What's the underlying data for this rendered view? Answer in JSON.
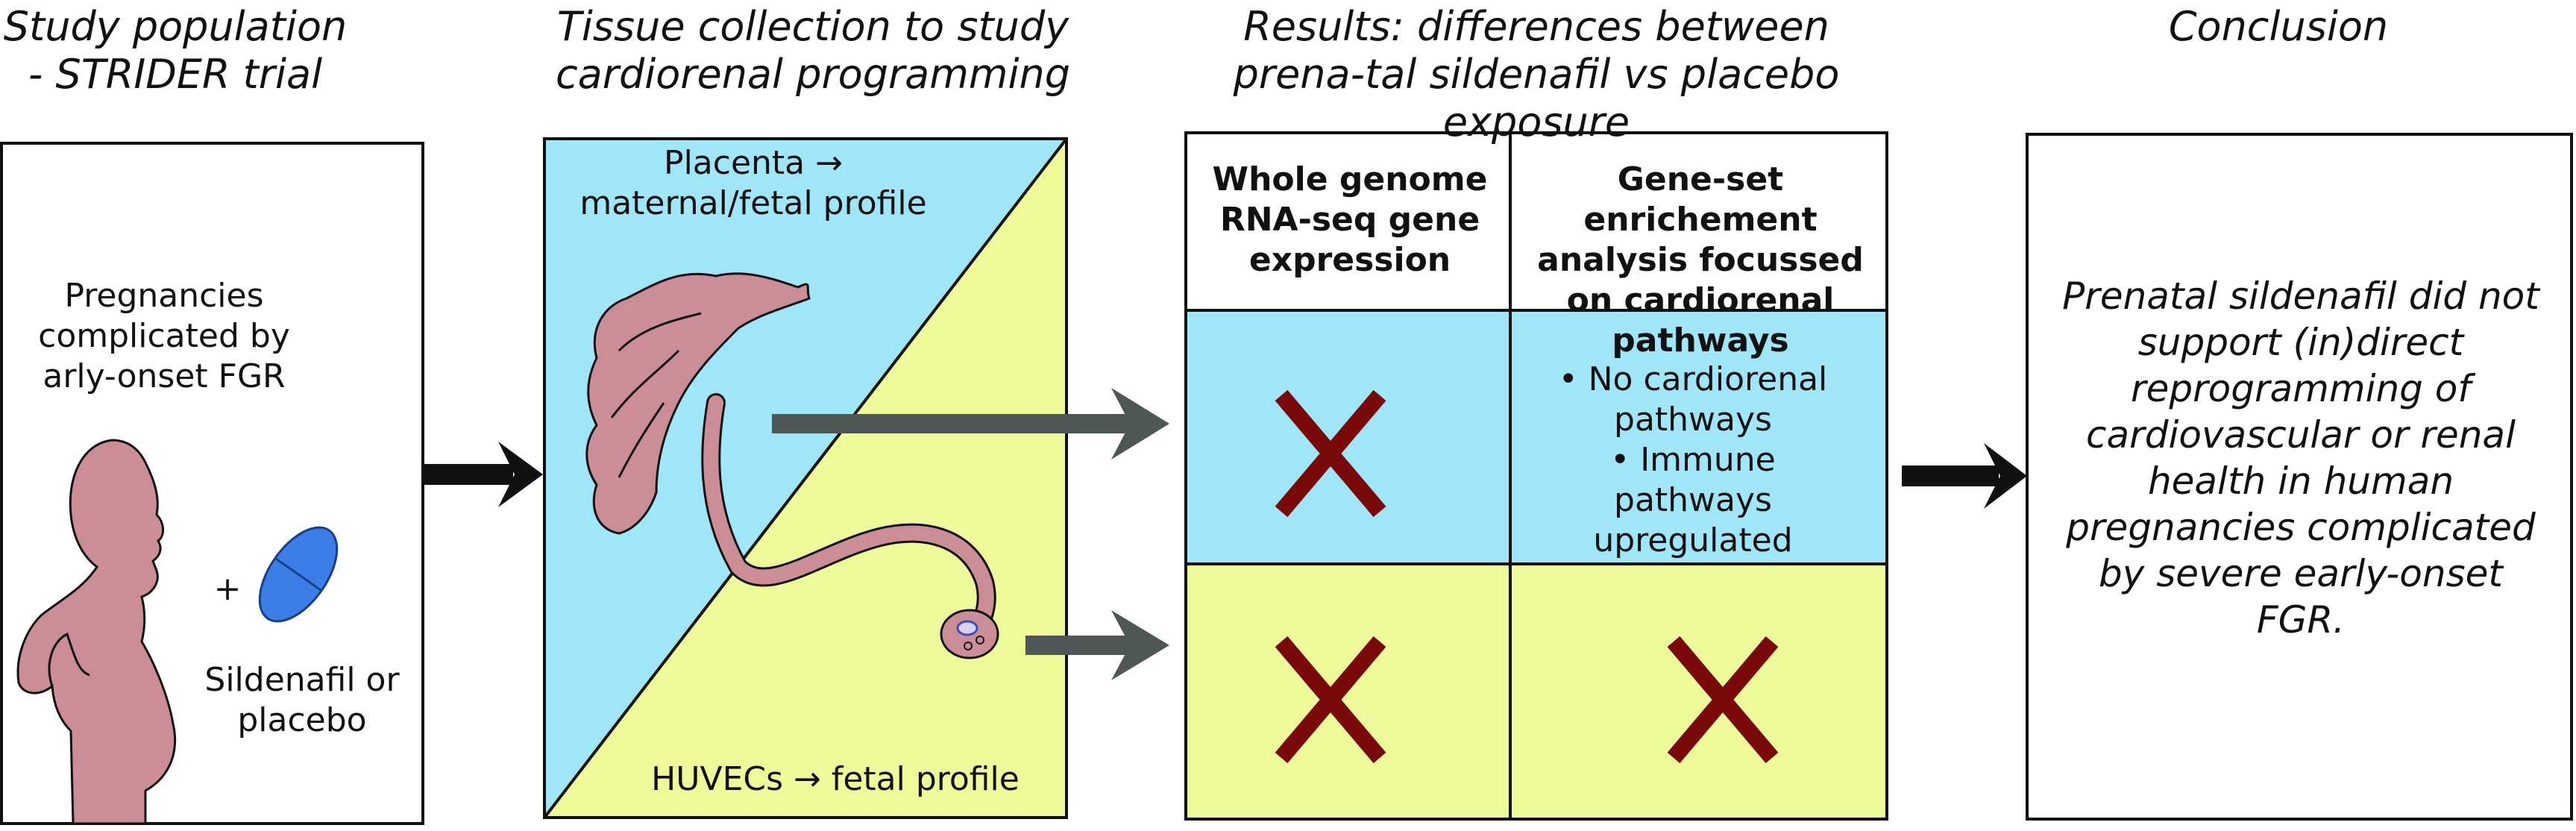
{
  "headings": {
    "study_population": "Study population - STRIDER trial",
    "tissue_collection": "Tissue collection to study cardiorenal programming",
    "results": "Results: differences between prena-tal sildenafil vs placebo exposure",
    "conclusion": "Conclusion"
  },
  "study_panel": {
    "pregnancies": "Pregnancies complicated by arly-onset FGR",
    "plus": "+",
    "treatment": "Sildenafil or placebo"
  },
  "tissue_panel": {
    "placenta": "Placenta → maternal/fetal profile",
    "huvecs": "HUVECs → fetal profile"
  },
  "results_table": {
    "col1_header": "Whole genome RNA-seq gene expression",
    "col2_header": "Gene-set enrichement analysis focussed on cardiorenal pathways",
    "placenta_row_col2_item1": "• No cardiorenal pathways",
    "placenta_row_col2_item2": "• Immune pathways upregulated"
  },
  "conclusion_text": "Prenatal sildenafil did not support (in)direct reprogramming of cardiovascular or renal health in human pregnancies complicated by severe early-onset FGR.",
  "colors": {
    "blue": "#9ee6f8",
    "yellow": "#eefa9a",
    "figure": "#cc8e96",
    "pill": "#3b7ee6",
    "cross": "#7a0a0a",
    "arrow_gray": "#4e5656",
    "arrow_black": "#111111"
  }
}
